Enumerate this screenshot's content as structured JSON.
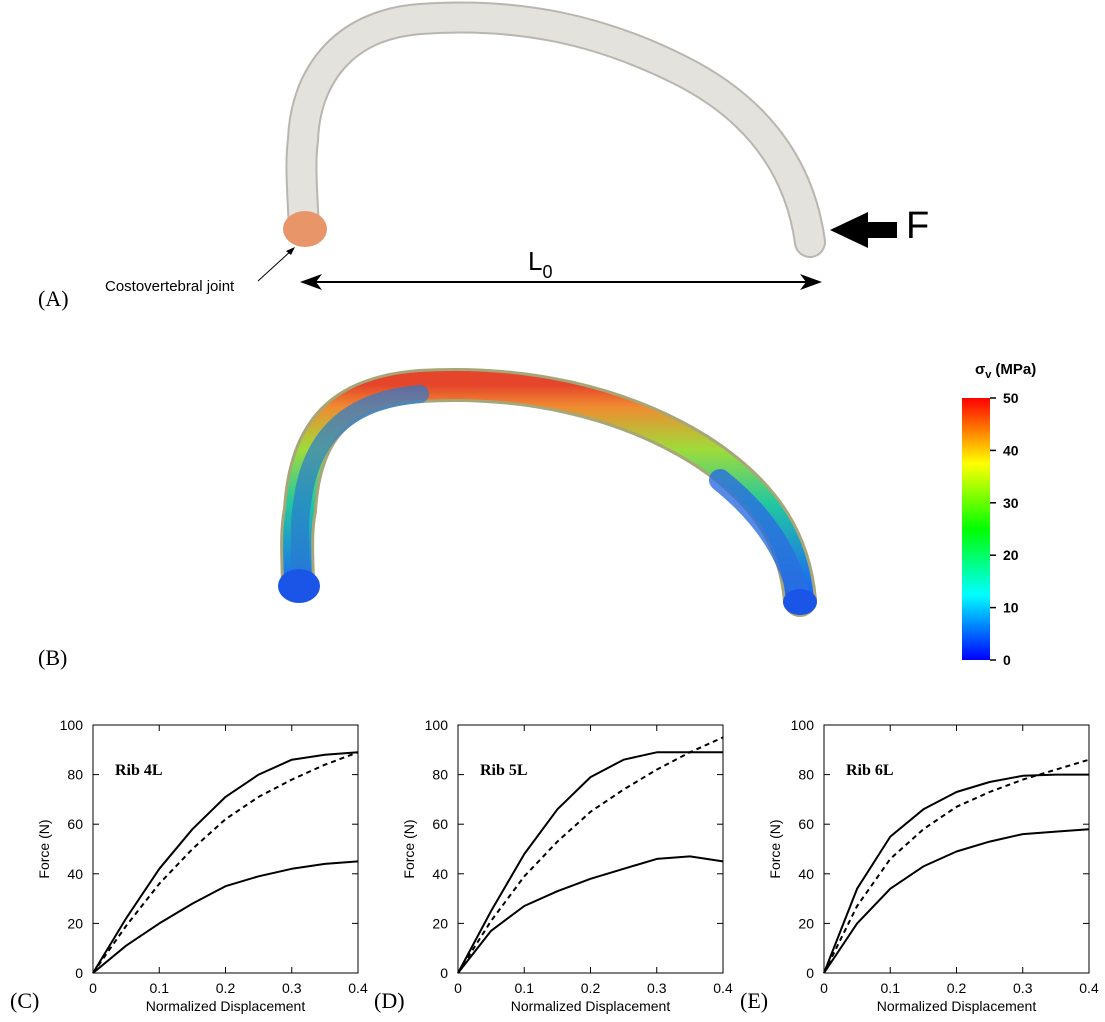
{
  "figure": {
    "panels": [
      "(A)",
      "(B)",
      "(C)",
      "(D)",
      "(E)"
    ],
    "annotations": {
      "joint": "Costovertebral joint",
      "force": "F",
      "length": {
        "symbol": "L",
        "subscript": "0"
      }
    },
    "colorbar": {
      "title": {
        "symbol": "σ",
        "subscript": "v",
        "unit": "(MPa)"
      },
      "lim": [
        0,
        50
      ],
      "ticks": [
        0,
        10,
        20,
        30,
        40,
        50
      ],
      "colormap": [
        "#0000ff",
        "#00ffff",
        "#00ff00",
        "#ffff00",
        "#ff0000"
      ]
    }
  },
  "chart_data": [
    {
      "type": "line",
      "annotation": "Rib 4L",
      "x_label": "Normalized Displacement",
      "y_label": "Force (N)",
      "x": [
        0,
        0.05,
        0.1,
        0.15,
        0.2,
        0.25,
        0.3,
        0.35,
        0.4
      ],
      "xlim": [
        0,
        0.4
      ],
      "xticks": [
        0,
        0.1,
        0.2,
        0.3,
        0.4
      ],
      "ylim": [
        0,
        100
      ],
      "yticks": [
        0,
        20,
        40,
        60,
        80,
        100
      ],
      "series": [
        {
          "color": "#000000",
          "line_style": "solid",
          "values": [
            0,
            22,
            42,
            58,
            71,
            80,
            86,
            88,
            89
          ]
        },
        {
          "color": "#000000",
          "line_style": "dashed",
          "values": [
            0,
            19,
            36,
            50,
            62,
            71,
            78,
            84,
            89
          ]
        },
        {
          "color": "#000000",
          "line_style": "solid",
          "values": [
            0,
            11,
            20,
            28,
            35,
            39,
            42,
            44,
            45
          ]
        }
      ]
    },
    {
      "type": "line",
      "annotation": "Rib 5L",
      "x_label": "Normalized Displacement",
      "y_label": "Force (N)",
      "x": [
        0,
        0.05,
        0.1,
        0.15,
        0.2,
        0.25,
        0.3,
        0.35,
        0.4
      ],
      "xlim": [
        0,
        0.4
      ],
      "xticks": [
        0,
        0.1,
        0.2,
        0.3,
        0.4
      ],
      "ylim": [
        0,
        100
      ],
      "yticks": [
        0,
        20,
        40,
        60,
        80,
        100
      ],
      "series": [
        {
          "color": "#000000",
          "line_style": "solid",
          "values": [
            0,
            25,
            48,
            66,
            79,
            86,
            89,
            89,
            89
          ]
        },
        {
          "color": "#000000",
          "line_style": "dashed",
          "values": [
            0,
            21,
            39,
            53,
            65,
            74,
            82,
            89,
            95
          ]
        },
        {
          "color": "#000000",
          "line_style": "solid",
          "values": [
            0,
            17,
            27,
            33,
            38,
            42,
            46,
            47,
            45
          ]
        }
      ]
    },
    {
      "type": "line",
      "annotation": "Rib 6L",
      "x_label": "Normalized Displacement",
      "y_label": "Force (N)",
      "x": [
        0,
        0.05,
        0.1,
        0.15,
        0.2,
        0.25,
        0.3,
        0.35,
        0.4
      ],
      "xlim": [
        0,
        0.4
      ],
      "xticks": [
        0,
        0.1,
        0.2,
        0.3,
        0.4
      ],
      "ylim": [
        0,
        100
      ],
      "yticks": [
        0,
        20,
        40,
        60,
        80,
        100
      ],
      "series": [
        {
          "color": "#000000",
          "line_style": "solid",
          "values": [
            0,
            34,
            55,
            66,
            73,
            77,
            79.5,
            80,
            80
          ]
        },
        {
          "color": "#000000",
          "line_style": "dashed",
          "values": [
            0,
            27,
            46,
            58,
            67,
            73,
            78,
            82,
            86
          ]
        },
        {
          "color": "#000000",
          "line_style": "solid",
          "values": [
            0,
            20,
            34,
            43,
            49,
            53,
            56,
            57,
            58
          ]
        }
      ]
    }
  ]
}
